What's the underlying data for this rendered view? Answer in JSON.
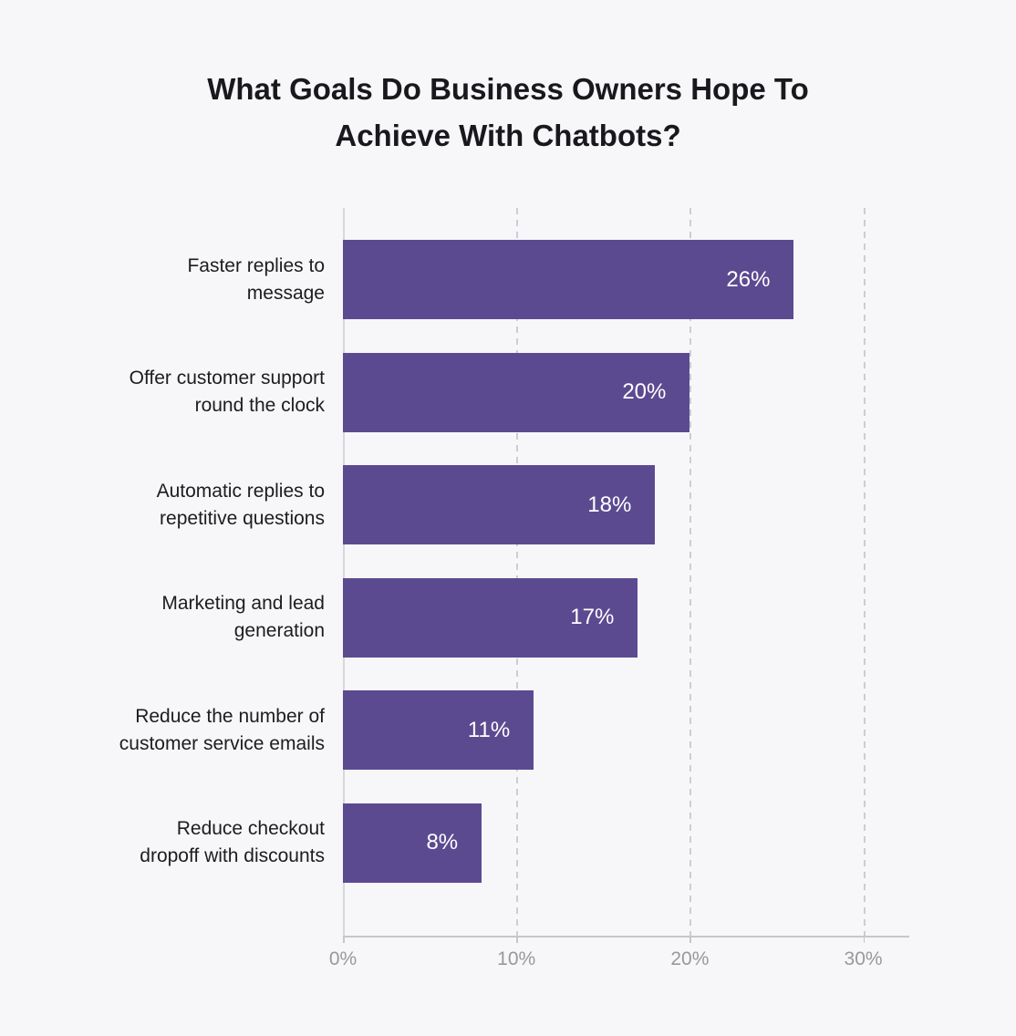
{
  "page": {
    "background": "#F7F7F9"
  },
  "title": {
    "line1": "What Goals Do Business Owners Hope To",
    "line2": "Achieve With Chatbots?"
  },
  "chart_data": {
    "type": "bar",
    "orientation": "horizontal",
    "title": "What Goals Do Business Owners Hope To Achieve With Chatbots?",
    "categories": [
      "Faster replies to message",
      "Offer customer support round the clock",
      "Automatic replies to repetitive questions",
      "Marketing and lead generation",
      "Reduce the number of customer service emails",
      "Reduce checkout dropoff with discounts"
    ],
    "category_lines": [
      [
        "Faster replies to",
        "message"
      ],
      [
        "Offer customer support",
        "round the clock"
      ],
      [
        "Automatic replies to",
        "repetitive questions"
      ],
      [
        "Marketing and lead",
        "generation"
      ],
      [
        "Reduce the number of",
        "customer service emails"
      ],
      [
        "Reduce checkout",
        "dropoff with discounts"
      ]
    ],
    "values": [
      26,
      20,
      18,
      17,
      11,
      8
    ],
    "value_labels": [
      "26%",
      "20%",
      "18%",
      "17%",
      "11%",
      "8%"
    ],
    "x_ticks": [
      {
        "value": 0,
        "label": "0%"
      },
      {
        "value": 10,
        "label": "10%"
      },
      {
        "value": 20,
        "label": "20%"
      },
      {
        "value": 30,
        "label": "30%"
      }
    ],
    "xlim": [
      0,
      32.6
    ],
    "xlabel": "",
    "ylabel": "",
    "grid": "vertical-dashed",
    "legend": "none",
    "colors": {
      "bar": "#5C4A91",
      "value_label": "#FFFFFF",
      "category_label": "#1D1D21",
      "axis_label": "#98989D",
      "axis_line": "#C6C6CB",
      "gridline": "#CDCDD3",
      "background": "#F7F7F9"
    }
  }
}
